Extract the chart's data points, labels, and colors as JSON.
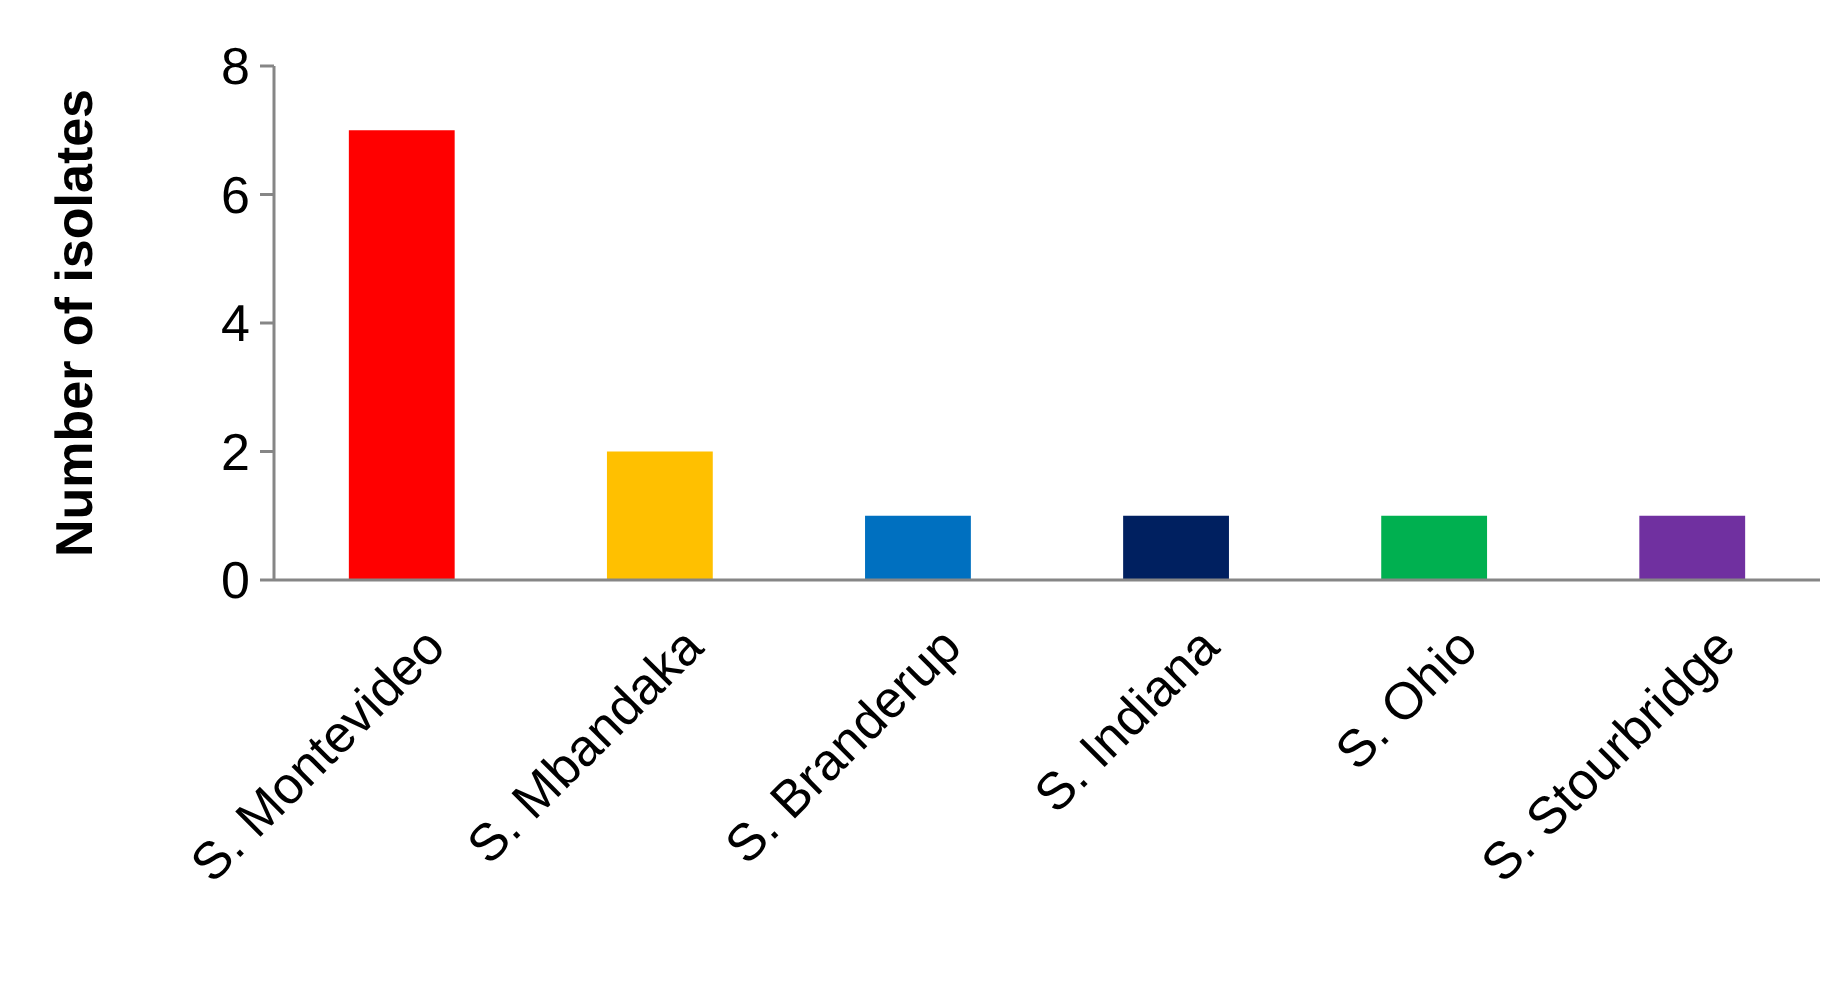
{
  "chart_data": {
    "type": "bar",
    "ylabel": "Number of isolates",
    "categories": [
      "S. Montevideo",
      "S. Mbandaka",
      "S. Branderup",
      "S. Indiana",
      "S. Ohio",
      "S. Stourbridge"
    ],
    "values": [
      7,
      2,
      1,
      1,
      1,
      1
    ],
    "colors": [
      "#ff0000",
      "#ffc000",
      "#0070c0",
      "#002060",
      "#00b050",
      "#7030a0"
    ],
    "ylim": [
      0,
      8
    ],
    "yticks": [
      0,
      2,
      4,
      6,
      8
    ],
    "grid": false
  }
}
